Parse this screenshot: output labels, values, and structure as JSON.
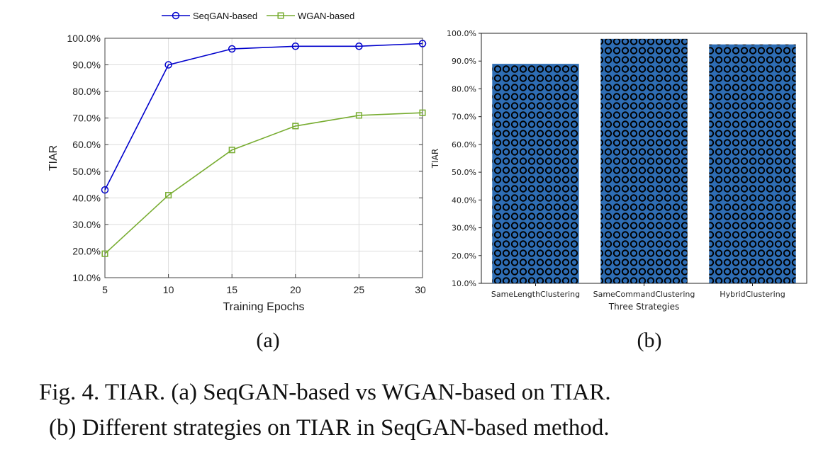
{
  "chart_data": [
    {
      "type": "line",
      "subfigure_label": "(a)",
      "title": "",
      "xlabel": "Training Epochs",
      "ylabel": "TIAR",
      "x": [
        5,
        10,
        15,
        20,
        25,
        30
      ],
      "xticks": [
        "5",
        "10",
        "15",
        "20",
        "25",
        "30"
      ],
      "yticks": [
        "10.0%",
        "20.0%",
        "30.0%",
        "40.0%",
        "50.0%",
        "60.0%",
        "70.0%",
        "80.0%",
        "90.0%",
        "100.0%"
      ],
      "xlim": [
        5,
        30
      ],
      "ylim": [
        10,
        100
      ],
      "grid": true,
      "legend_position": "top",
      "series": [
        {
          "name": "SeqGAN-based",
          "color": "#0000cc",
          "marker": "circle",
          "values": [
            43,
            90,
            96,
            97,
            97,
            98
          ]
        },
        {
          "name": "WGAN-based",
          "color": "#77ac30",
          "marker": "square",
          "values": [
            19,
            41,
            58,
            67,
            71,
            72
          ]
        }
      ]
    },
    {
      "type": "bar",
      "subfigure_label": "(b)",
      "title": "",
      "xlabel": "Three Strategies",
      "ylabel": "TIAR",
      "categories": [
        "SameLengthClustering",
        "SameCommandClustering",
        "HybridClustering"
      ],
      "values": [
        89,
        98,
        96
      ],
      "yticks": [
        "10.0%",
        "20.0%",
        "30.0%",
        "40.0%",
        "50.0%",
        "60.0%",
        "70.0%",
        "80.0%",
        "90.0%",
        "100.0%"
      ],
      "ylim": [
        10,
        100
      ],
      "grid": false,
      "bar_color": "#2e6db4",
      "hatch": "circles"
    }
  ],
  "caption": {
    "line1": "Fig. 4. TIAR. (a) SeqGAN-based vs WGAN-based on TIAR.",
    "line2": "(b) Different strategies on TIAR in SeqGAN-based method."
  }
}
